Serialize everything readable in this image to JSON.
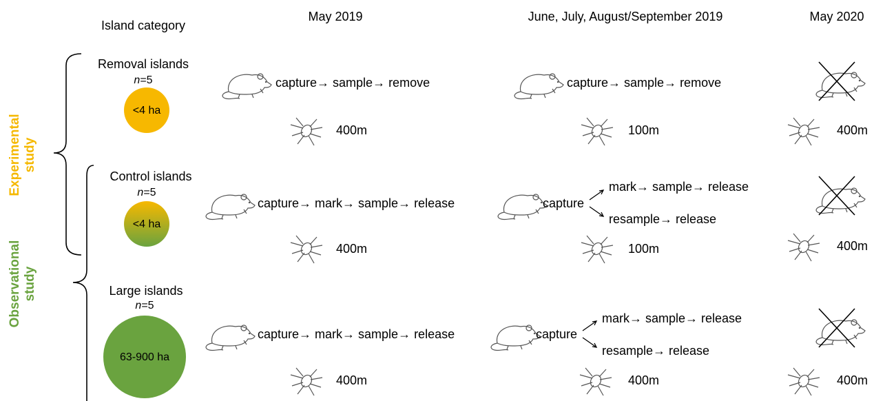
{
  "headers": {
    "category": "Island category",
    "may2019": "May 2019",
    "summer2019": "June, July, August/September 2019",
    "may2020": "May 2020"
  },
  "studies": {
    "experimental": [
      "Experimental",
      "study"
    ],
    "observational": [
      "Observational",
      "study"
    ]
  },
  "rows": [
    {
      "name": "Removal islands",
      "n_symbol": "n",
      "n_value": "=5",
      "size": "<4 ha",
      "may2019": {
        "procedure": "capture→ sample→ remove",
        "tick_distance": "400m"
      },
      "summer2019": {
        "procedure": "capture→ sample→ remove",
        "tick_distance": "100m"
      },
      "may2020": {
        "tick_distance": "400m"
      }
    },
    {
      "name": "Control islands",
      "n_symbol": "n",
      "n_value": "=5",
      "size": "<4 ha",
      "may2019": {
        "procedure": "capture→ mark→ sample→ release",
        "tick_distance": "400m"
      },
      "summer2019": {
        "procedure": "capture",
        "branches": [
          "mark→ sample→ release",
          "resample→ release"
        ],
        "tick_distance": "100m"
      },
      "may2020": {
        "tick_distance": "400m"
      }
    },
    {
      "name": "Large islands",
      "n_symbol": "n",
      "n_value": "=5",
      "size": "63-900 ha",
      "may2019": {
        "procedure": "capture→ mark→ sample→ release",
        "tick_distance": "400m"
      },
      "summer2019": {
        "procedure": "capture",
        "branches": [
          "mark→ sample→ release",
          "resample→ release"
        ],
        "tick_distance": "400m"
      },
      "may2020": {
        "tick_distance": "400m"
      }
    }
  ]
}
